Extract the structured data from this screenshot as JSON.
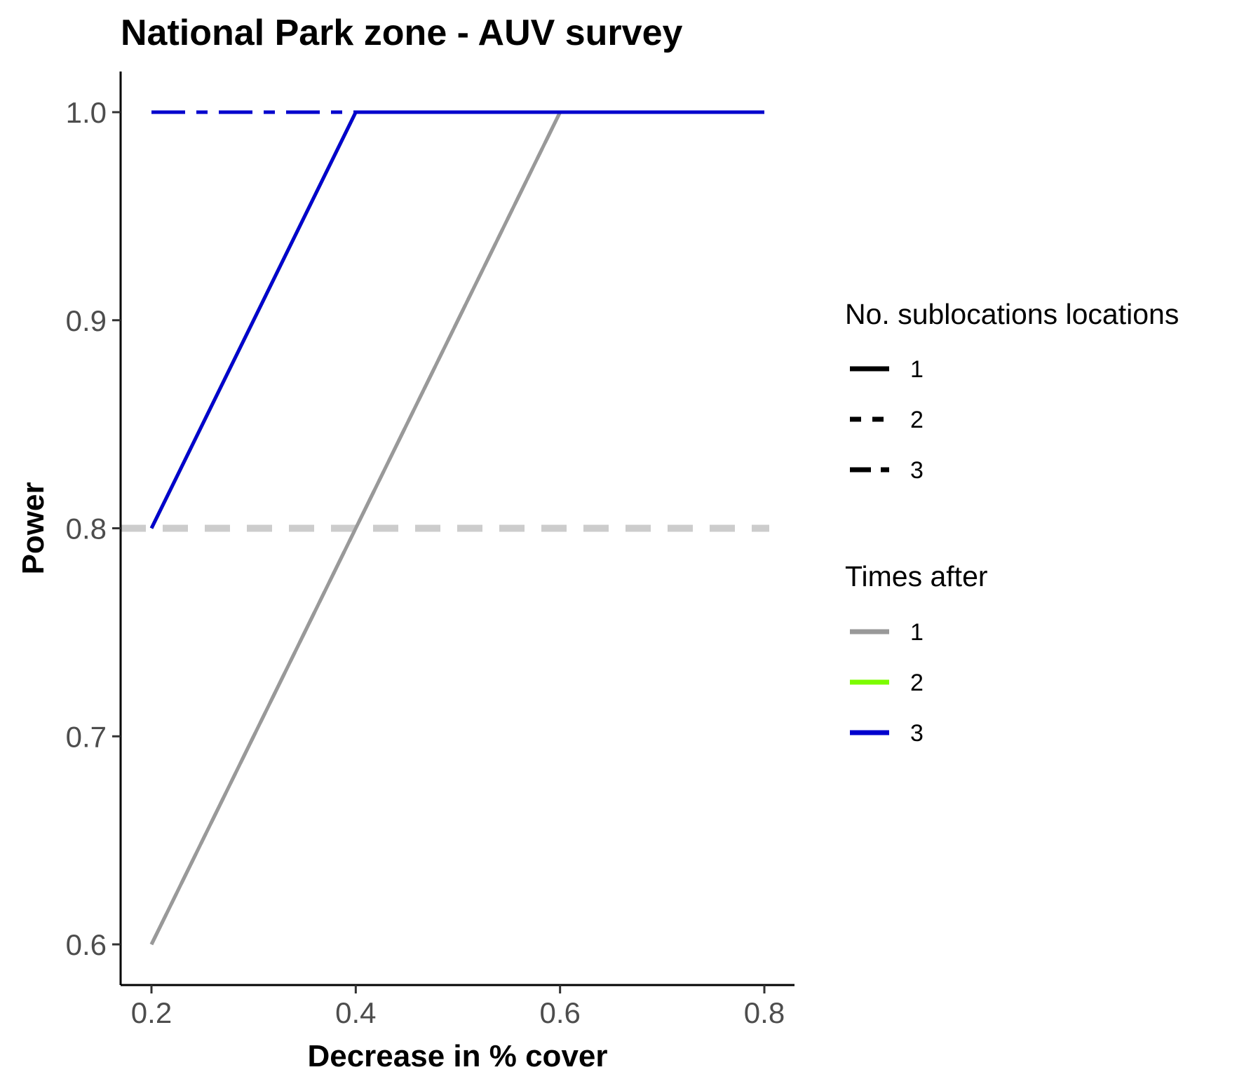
{
  "chart_data": {
    "type": "line",
    "title": "National Park zone - AUV survey",
    "xlabel": "Decrease in % cover",
    "ylabel": "Power",
    "xlim": [
      0.2,
      0.8
    ],
    "ylim": [
      0.6,
      1.0
    ],
    "x_ticks": [
      0.2,
      0.4,
      0.6,
      0.8
    ],
    "x_tick_labels": [
      "0.2",
      "0.4",
      "0.6",
      "0.8"
    ],
    "y_ticks": [
      0.6,
      0.7,
      0.8,
      0.9,
      1.0
    ],
    "y_tick_labels": [
      "0.6",
      "0.7",
      "0.8",
      "0.9",
      "1.0"
    ],
    "grid": false,
    "legend_position": "right",
    "reference_line": {
      "y": 0.8,
      "color": "#cccccc",
      "linetype": "dashed"
    },
    "x": [
      0.2,
      0.4,
      0.6,
      0.8
    ],
    "series": [
      {
        "sublocations": "1",
        "times_after": "1",
        "values": [
          0.6,
          0.8,
          1.0,
          1.0
        ]
      },
      {
        "sublocations": "2",
        "times_after": "1",
        "values": [
          0.6,
          0.8,
          1.0,
          1.0
        ]
      },
      {
        "sublocations": "3",
        "times_after": "1",
        "values": [
          0.6,
          0.8,
          1.0,
          1.0
        ]
      },
      {
        "sublocations": "1",
        "times_after": "2",
        "values": [
          0.8,
          1.0,
          1.0,
          1.0
        ]
      },
      {
        "sublocations": "2",
        "times_after": "2",
        "values": [
          1.0,
          1.0,
          1.0,
          1.0
        ]
      },
      {
        "sublocations": "3",
        "times_after": "2",
        "values": [
          1.0,
          1.0,
          1.0,
          1.0
        ]
      },
      {
        "sublocations": "1",
        "times_after": "3",
        "values": [
          0.8,
          1.0,
          1.0,
          1.0
        ]
      },
      {
        "sublocations": "2",
        "times_after": "3",
        "values": [
          1.0,
          1.0,
          1.0,
          1.0
        ]
      },
      {
        "sublocations": "3",
        "times_after": "3",
        "values": [
          1.0,
          1.0,
          1.0,
          1.0
        ]
      }
    ],
    "legend": {
      "linetype": {
        "title": "No. sublocations locations",
        "entries": [
          {
            "label": "1",
            "linetype": "solid"
          },
          {
            "label": "2",
            "linetype": "dashed"
          },
          {
            "label": "3",
            "linetype": "longdash"
          }
        ]
      },
      "color": {
        "title": "Times after",
        "entries": [
          {
            "label": "1",
            "color": "#999999"
          },
          {
            "label": "2",
            "color": "#7cfc00"
          },
          {
            "label": "3",
            "color": "#0000cd"
          }
        ]
      }
    }
  }
}
